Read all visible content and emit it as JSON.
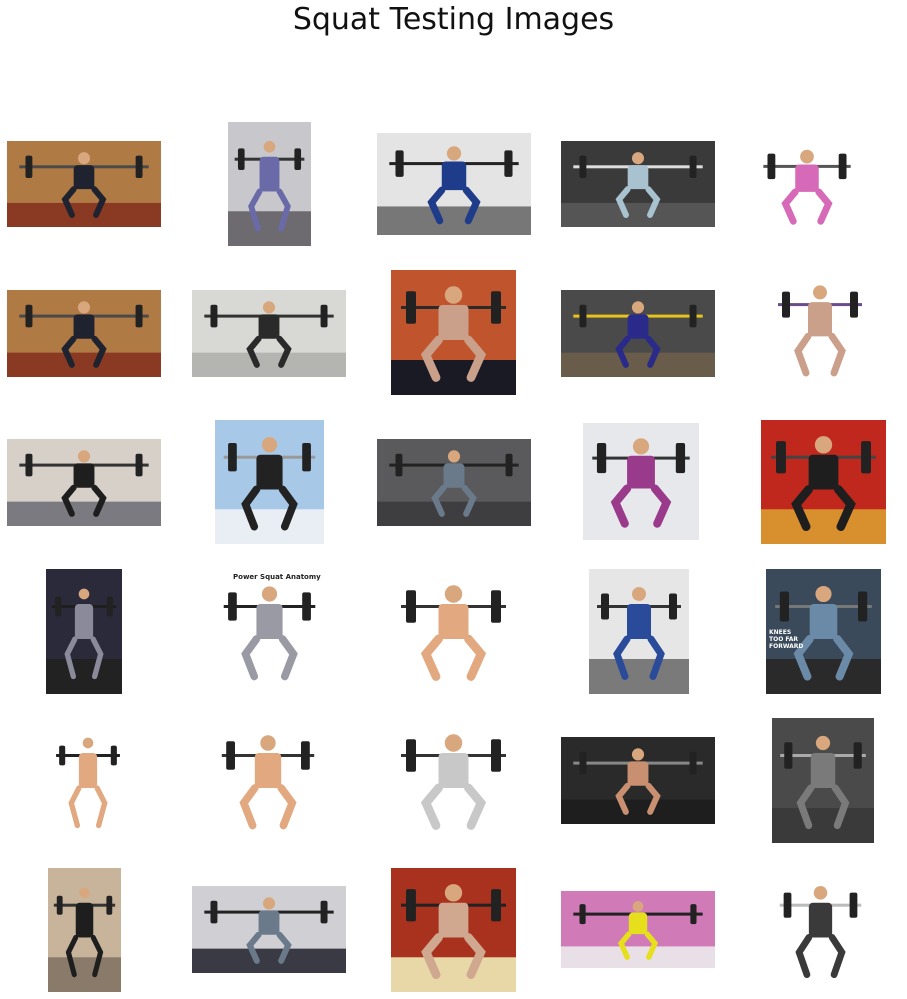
{
  "figure": {
    "title": "Squat Testing Images"
  },
  "images": [
    {
      "scene": "gym-wall-back-squat",
      "bg": "#b07a45",
      "floor": "#8a3a22",
      "figure": "#1f2330",
      "bar": "#4a4a4a"
    },
    {
      "scene": "gym-bright-goblet-squat",
      "bg": "#c8c8cc",
      "floor": "#6d6a70",
      "figure": "#6a6aa8",
      "bar": "#333333"
    },
    {
      "scene": "rack-back-view-blue-top",
      "bg": "#e4e4e4",
      "floor": "#777777",
      "figure": "#1e3c8a",
      "bar": "#222222"
    },
    {
      "scene": "split-comparison-squat",
      "bg": "#3a3a3a",
      "floor": "#555555",
      "figure": "#a9c2cf",
      "bar": "#dddddd"
    },
    {
      "scene": "bench-squat-white",
      "bg": "#ffffff",
      "floor": "#ffffff",
      "figure": "#d66ab8",
      "bar": "#555555"
    },
    {
      "scene": "gym-wall-back-squat",
      "bg": "#b07a45",
      "floor": "#8a3a22",
      "figure": "#1f2330",
      "bar": "#4a4a4a"
    },
    {
      "scene": "squat-rack-room",
      "bg": "#d8d8d4",
      "floor": "#b4b4b0",
      "figure": "#2a2a2a",
      "bar": "#333333"
    },
    {
      "scene": "crossfit-box-back-squat",
      "bg": "#c0542c",
      "floor": "#1a1a24",
      "figure": "#caa08a",
      "bar": "#2a2a2a"
    },
    {
      "scene": "yellow-plates-gym",
      "bg": "#4a4a4a",
      "floor": "#6a5c4a",
      "figure": "#2a2a8a",
      "bar": "#e6c41c"
    },
    {
      "scene": "standing-barbell-white",
      "bg": "#ffffff",
      "floor": "#ffffff",
      "figure": "#caa08a",
      "bar": "#6a4c8a"
    },
    {
      "scene": "front-squat-gym-floor",
      "bg": "#d6d0c8",
      "floor": "#7a7a80",
      "figure": "#1e1e1e",
      "bar": "#333333"
    },
    {
      "scene": "rack-blue-light",
      "bg": "#a8c8e8",
      "floor": "#e8eef4",
      "figure": "#222222",
      "bar": "#999999"
    },
    {
      "scene": "dark-gym-rack",
      "bg": "#5a5a5c",
      "floor": "#3e3e40",
      "figure": "#6a7a8a",
      "bar": "#222222"
    },
    {
      "scene": "purple-leggings-studio",
      "bg": "#e6e8ec",
      "floor": "#e6e8ec",
      "figure": "#9a3a8a",
      "bar": "#333333"
    },
    {
      "scene": "red-wall-wood-floor",
      "bg": "#c0281e",
      "floor": "#d8902e",
      "figure": "#1e1e1e",
      "bar": "#444444"
    },
    {
      "scene": "dark-side-view",
      "bg": "#2a2a3a",
      "floor": "#222222",
      "figure": "#8a8a9a",
      "bar": "#1e1e1e"
    },
    {
      "scene": "power-squat-anatomy",
      "bg": "#ffffff",
      "floor": "#ffffff",
      "figure": "#9a9aa4",
      "bar": "#222222"
    },
    {
      "scene": "shirtless-squat-white",
      "bg": "#ffffff",
      "floor": "#ffffff",
      "figure": "#e2a880",
      "bar": "#333333"
    },
    {
      "scene": "orange-rack-woman",
      "bg": "#e6e6e6",
      "floor": "#7a7a7a",
      "figure": "#2a4a9a",
      "bar": "#333333"
    },
    {
      "scene": "knees-too-far-forward",
      "bg": "#3a4a5a",
      "floor": "#2a2a2a",
      "figure": "#6a8aa8",
      "bar": "#777777"
    },
    {
      "scene": "standing-shirtless-white",
      "bg": "#ffffff",
      "floor": "#ffffff",
      "figure": "#e2a880",
      "bar": "#222222"
    },
    {
      "scene": "deep-squat-shirtless-white",
      "bg": "#ffffff",
      "floor": "#ffffff",
      "figure": "#e2a880",
      "bar": "#333333"
    },
    {
      "scene": "anatomy-sketch-squat",
      "bg": "#ffffff",
      "floor": "#ffffff",
      "figure": "#c8c8c8",
      "bar": "#333333"
    },
    {
      "scene": "dark-studio-woman",
      "bg": "#2a2a2a",
      "floor": "#1e1e1e",
      "figure": "#c89070",
      "bar": "#888888"
    },
    {
      "scene": "grey-shirt-rack",
      "bg": "#4a4a4a",
      "floor": "#3a3a3a",
      "figure": "#7a7a7a",
      "bar": "#aaaaaa"
    },
    {
      "scene": "side-squat-gym",
      "bg": "#c8b49a",
      "floor": "#8a7a6a",
      "figure": "#1e1e1e",
      "bar": "#333333"
    },
    {
      "scene": "rack-woman-grey-gym",
      "bg": "#d0d0d4",
      "floor": "#3a3a44",
      "figure": "#6a7a8a",
      "bar": "#222222"
    },
    {
      "scene": "platform-red-wall",
      "bg": "#a8321e",
      "floor": "#e8d8a8",
      "figure": "#d0a890",
      "bar": "#222222"
    },
    {
      "scene": "pink-wall-squat",
      "bg": "#d07ab8",
      "floor": "#e8e0e6",
      "figure": "#e6e01c",
      "bar": "#222222"
    },
    {
      "scene": "goblet-squat-white",
      "bg": "#ffffff",
      "floor": "#ffffff",
      "figure": "#3a3a3a",
      "bar": "#bbbbbb"
    }
  ],
  "texts": {
    "anatomy_heading": "Power Squat Anatomy",
    "knees_caption": "KNEES TOO FAR FORWARD"
  }
}
